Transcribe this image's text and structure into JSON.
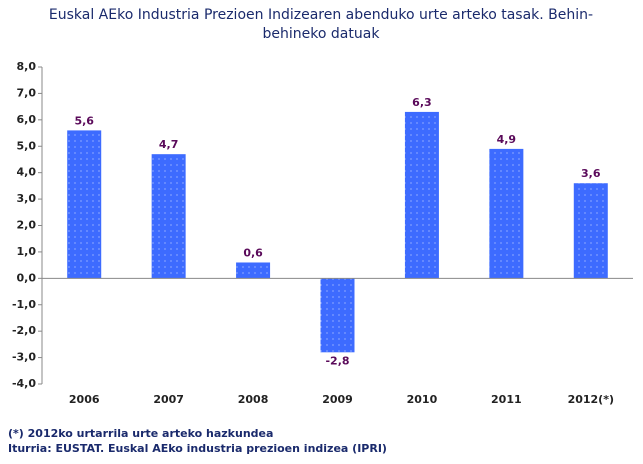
{
  "chart_data": {
    "type": "bar",
    "title": [
      "Euskal AEko Industria Prezioen Indizearen abenduko urte arteko tasak.  Behin-",
      "behineko datuak"
    ],
    "categories": [
      "2006",
      "2007",
      "2008",
      "2009",
      "2010",
      "2011",
      "2012(*)"
    ],
    "values": [
      5.6,
      4.7,
      0.6,
      -2.8,
      6.3,
      4.9,
      3.6
    ],
    "value_labels": [
      "5,6",
      "4,7",
      "0,6",
      "-2,8",
      "6,3",
      "4,9",
      "3,6"
    ],
    "color": "#3d6bff",
    "ylim": [
      -4,
      8
    ],
    "yticks": [
      {
        "value": -4,
        "label": "-4,0"
      },
      {
        "value": -3,
        "label": "-3,0"
      },
      {
        "value": -2,
        "label": "-2,0"
      },
      {
        "value": -1,
        "label": "-1,0"
      },
      {
        "value": 0,
        "label": "0,0"
      },
      {
        "value": 1,
        "label": "1,0"
      },
      {
        "value": 2,
        "label": "2,0"
      },
      {
        "value": 3,
        "label": "3,0"
      },
      {
        "value": 4,
        "label": "4,0"
      },
      {
        "value": 5,
        "label": "5,0"
      },
      {
        "value": 6,
        "label": "6,0"
      },
      {
        "value": 7,
        "label": "7,0"
      },
      {
        "value": 8,
        "label": "8,0"
      }
    ],
    "grid": false,
    "notes": [
      "(*) 2012ko urtarrila urte arteko hazkundea",
      "Iturria: EUSTAT. Euskal AEko industria prezioen indizea (IPRI)"
    ]
  }
}
